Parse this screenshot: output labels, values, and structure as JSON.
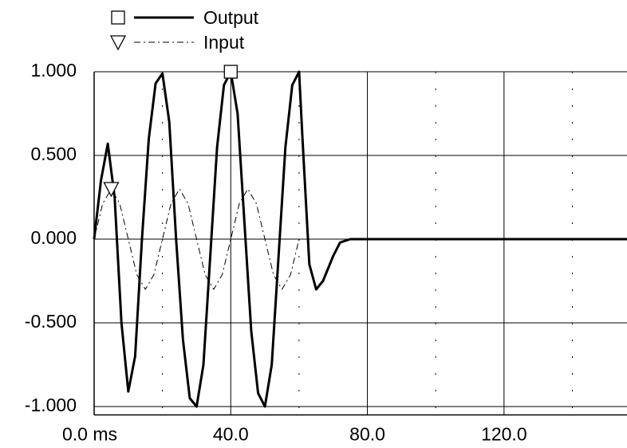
{
  "chart_data": {
    "type": "line",
    "series": [
      {
        "name": "Output",
        "color": "#000000",
        "style": "solid",
        "marker": "square",
        "marker_index": 20,
        "x": [
          0,
          2,
          4,
          6,
          8,
          10,
          12,
          14,
          16,
          18,
          20,
          22,
          24,
          26,
          28,
          30,
          32,
          34,
          36,
          38,
          40,
          42,
          44,
          46,
          48,
          50,
          52,
          54,
          56,
          58,
          60,
          61,
          63,
          65,
          67,
          70,
          72,
          75,
          80,
          100,
          156
        ],
        "values": [
          0,
          0.35,
          0.57,
          0.25,
          -0.5,
          -0.91,
          -0.7,
          0,
          0.6,
          0.93,
          0.99,
          0.7,
          0,
          -0.6,
          -0.95,
          -1.0,
          -0.75,
          -0.1,
          0.55,
          0.92,
          1.0,
          0.75,
          0.1,
          -0.55,
          -0.92,
          -1.0,
          -0.75,
          -0.1,
          0.55,
          0.92,
          1.0,
          0.6,
          -0.15,
          -0.3,
          -0.25,
          -0.1,
          -0.02,
          0,
          0,
          0,
          0
        ]
      },
      {
        "name": "Input",
        "color": "#000000",
        "style": "dashdot",
        "marker": "triangle",
        "marker_index": 2,
        "x": [
          0,
          2.5,
          5,
          7.5,
          10,
          12.5,
          15,
          17.5,
          20,
          22.5,
          25,
          27.5,
          30,
          32.5,
          35,
          37.5,
          40,
          42.5,
          45,
          47.5,
          50,
          52.5,
          55,
          57.5,
          60
        ],
        "values": [
          0,
          0.212,
          0.3,
          0.212,
          0,
          -0.212,
          -0.3,
          -0.212,
          0,
          0.212,
          0.3,
          0.212,
          0,
          -0.212,
          -0.3,
          -0.212,
          0,
          0.212,
          0.3,
          0.212,
          0,
          -0.212,
          -0.3,
          -0.212,
          0
        ]
      }
    ],
    "xlim": [
      0,
      156
    ],
    "xticks": [
      {
        "value": 0,
        "label": "0.0 ms"
      },
      {
        "value": 40,
        "label": "40.0"
      },
      {
        "value": 80,
        "label": "80.0"
      },
      {
        "value": 120,
        "label": "120.0"
      }
    ],
    "x_minor_grid": [
      20,
      60,
      100,
      140
    ],
    "ylim": [
      -1.05,
      1.0
    ],
    "yticks": [
      {
        "value": 1,
        "label": "1.000"
      },
      {
        "value": 0.5,
        "label": "0.500"
      },
      {
        "value": 0,
        "label": "0.000"
      },
      {
        "value": -0.5,
        "label": "-0.500"
      },
      {
        "value": -1,
        "label": "-1.000"
      }
    ],
    "grid": true
  }
}
